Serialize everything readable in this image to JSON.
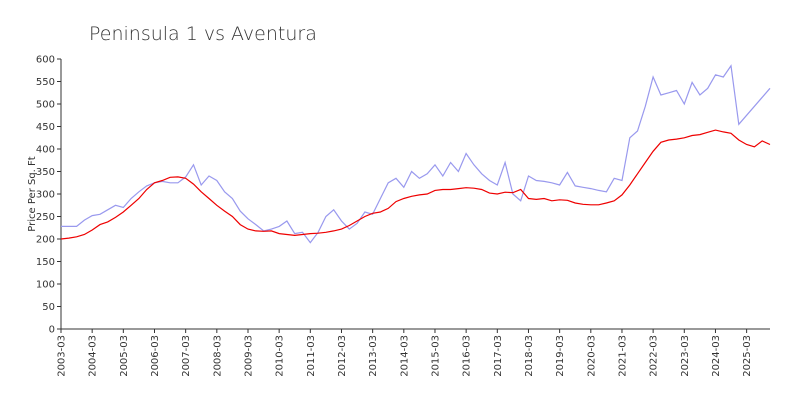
{
  "chart_data": {
    "type": "line",
    "title": "Peninsula 1 vs Aventura",
    "y_label": "Price Per Sq. Ft",
    "x": [
      "2003-03",
      "2003-06",
      "2003-09",
      "2003-12",
      "2004-03",
      "2004-06",
      "2004-09",
      "2004-12",
      "2005-03",
      "2005-06",
      "2005-09",
      "2005-12",
      "2006-03",
      "2006-06",
      "2006-09",
      "2006-12",
      "2007-03",
      "2007-06",
      "2007-09",
      "2007-12",
      "2008-03",
      "2008-06",
      "2008-09",
      "2008-12",
      "2009-03",
      "2009-06",
      "2009-09",
      "2009-12",
      "2010-03",
      "2010-06",
      "2010-09",
      "2010-12",
      "2011-03",
      "2011-06",
      "2011-09",
      "2011-12",
      "2012-03",
      "2012-06",
      "2012-09",
      "2012-12",
      "2013-03",
      "2013-06",
      "2013-09",
      "2013-12",
      "2014-03",
      "2014-06",
      "2014-09",
      "2014-12",
      "2015-03",
      "2015-06",
      "2015-09",
      "2015-12",
      "2016-03",
      "2016-06",
      "2016-09",
      "2016-12",
      "2017-03",
      "2017-06",
      "2017-09",
      "2017-12",
      "2018-03",
      "2018-06",
      "2018-09",
      "2018-12",
      "2019-03",
      "2019-06",
      "2019-09",
      "2019-12",
      "2020-03",
      "2020-06",
      "2020-09",
      "2020-12",
      "2021-03",
      "2021-06",
      "2021-09",
      "2021-12",
      "2022-03",
      "2022-06",
      "2022-09",
      "2022-12",
      "2023-03",
      "2023-06",
      "2023-09",
      "2023-12",
      "2024-03",
      "2024-06",
      "2024-09",
      "2024-12",
      "2025-03",
      "2025-06",
      "2025-09",
      "2025-12"
    ],
    "series": [
      {
        "color": "#9999ee",
        "values": [
          228,
          228,
          228,
          242,
          252,
          255,
          265,
          275,
          270,
          290,
          305,
          318,
          325,
          328,
          325,
          325,
          338,
          365,
          320,
          340,
          330,
          305,
          290,
          262,
          245,
          232,
          218,
          222,
          228,
          240,
          212,
          215,
          192,
          215,
          250,
          265,
          240,
          222,
          235,
          260,
          255,
          290,
          325,
          335,
          315,
          350,
          335,
          345,
          365,
          340,
          370,
          350,
          390,
          365,
          345,
          330,
          320,
          370,
          300,
          285,
          340,
          330,
          328,
          325,
          320,
          348,
          318,
          315,
          312,
          308,
          305,
          335,
          330,
          425,
          440,
          495,
          560,
          520,
          525,
          530,
          500,
          548,
          520,
          535,
          565,
          560,
          585,
          455,
          475,
          495,
          515,
          535
        ]
      },
      {
        "color": "#ee0000",
        "values": [
          200,
          202,
          205,
          210,
          220,
          232,
          238,
          248,
          260,
          275,
          290,
          310,
          325,
          330,
          337,
          338,
          335,
          322,
          305,
          290,
          275,
          262,
          250,
          232,
          222,
          218,
          217,
          218,
          212,
          210,
          208,
          210,
          212,
          213,
          215,
          218,
          222,
          230,
          240,
          250,
          257,
          260,
          268,
          283,
          290,
          295,
          298,
          300,
          308,
          310,
          310,
          312,
          314,
          313,
          310,
          302,
          300,
          304,
          303,
          310,
          290,
          288,
          290,
          285,
          287,
          286,
          280,
          277,
          276,
          276,
          280,
          285,
          298,
          320,
          345,
          370,
          395,
          415,
          420,
          422,
          425,
          430,
          432,
          437,
          442,
          438,
          435,
          420,
          410,
          405,
          418,
          410
        ]
      }
    ],
    "xlim": [
      "2003-03",
      "2025-12"
    ],
    "xticks": [
      "2003-03",
      "2004-03",
      "2005-03",
      "2006-03",
      "2007-03",
      "2008-03",
      "2009-03",
      "2010-03",
      "2011-03",
      "2012-03",
      "2013-03",
      "2014-03",
      "2015-03",
      "2016-03",
      "2017-03",
      "2018-03",
      "2019-03",
      "2020-03",
      "2021-03",
      "2022-03",
      "2023-03",
      "2024-03",
      "2025-03"
    ],
    "ylim": [
      0,
      600
    ],
    "yticks": [
      0,
      50,
      100,
      150,
      200,
      250,
      300,
      350,
      400,
      450,
      500,
      550,
      600
    ]
  }
}
